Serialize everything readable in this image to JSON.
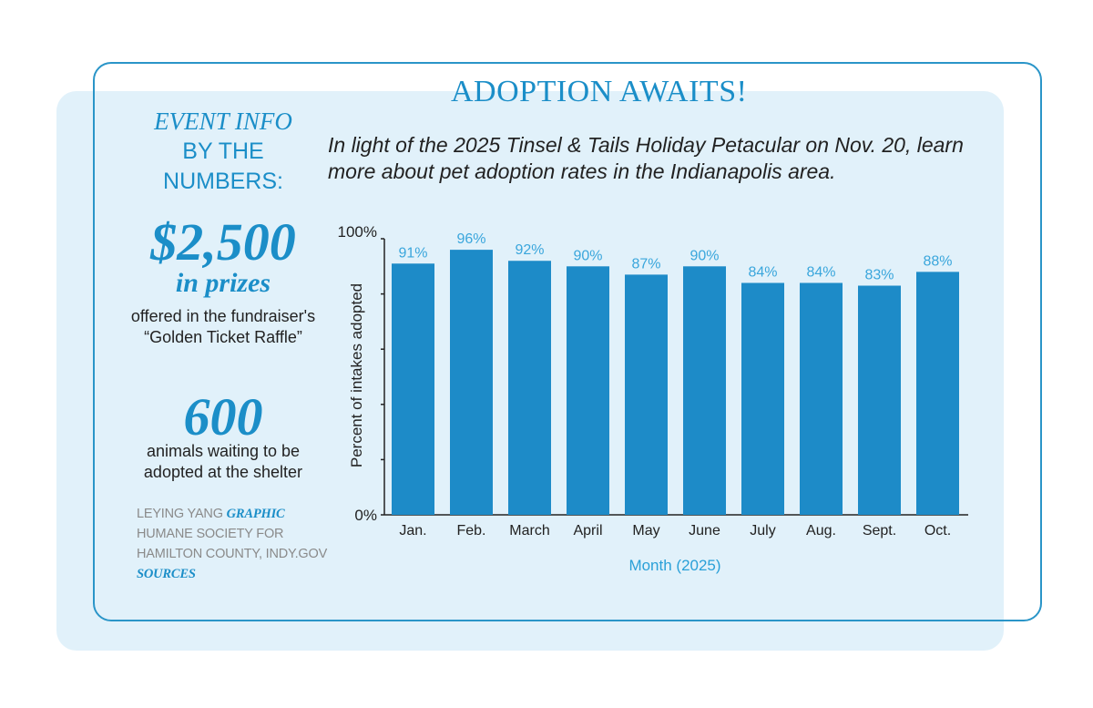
{
  "title": "ADOPTION AWAITS!",
  "subtitle": "In light of the 2025 Tinsel & Tails Holiday Petacular on Nov. 20, learn more about pet adoption rates in the Indianapolis area.",
  "sidebar": {
    "heading_line1": "EVENT INFO",
    "heading_line2": "BY THE",
    "heading_line3": "NUMBERS:",
    "stat1_value": "$2,500",
    "stat1_unit": "in prizes",
    "stat1_desc": "offered in the fundraiser's “Golden Ticket Raffle”",
    "stat2_value": "600",
    "stat2_desc": "animals waiting to be adopted at the shelter",
    "credit_name": "LEYING YANG",
    "credit_role": "GRAPHIC",
    "sources_text": "HUMANE SOCIETY FOR HAMILTON COUNTY, INDY.GOV",
    "sources_label": "SOURCES"
  },
  "colors": {
    "accent": "#1b8ec8",
    "bar": "#1d8bc8",
    "panel": "#e1f1fa"
  },
  "chart_data": {
    "type": "bar",
    "categories": [
      "Jan.",
      "Feb.",
      "March",
      "April",
      "May",
      "June",
      "July",
      "Aug.",
      "Sept.",
      "Oct."
    ],
    "values": [
      91,
      96,
      92,
      90,
      87,
      90,
      84,
      84,
      83,
      88
    ],
    "value_labels": [
      "91%",
      "96%",
      "92%",
      "90%",
      "87%",
      "90%",
      "84%",
      "84%",
      "83%",
      "88%"
    ],
    "xlabel": "Month (2025)",
    "ylabel": "Percent of intakes adopted",
    "ylim": [
      0,
      100
    ],
    "ytick_labels": [
      "0%",
      "100%"
    ],
    "grid": false
  }
}
